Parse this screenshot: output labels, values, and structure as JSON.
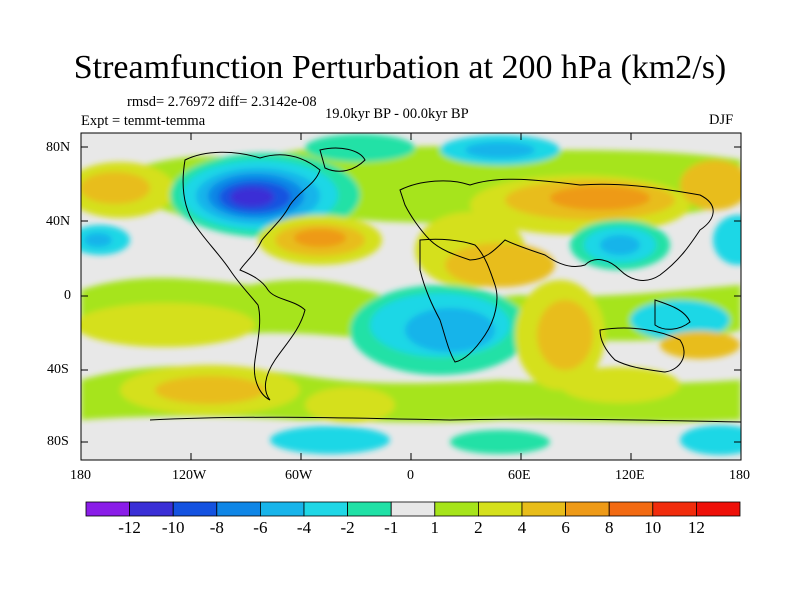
{
  "title": "Streamfunction Perturbation at 200 hPa (km2/s)",
  "stats": "rmsd= 2.76972 diff= 2.3142e-08",
  "experiment": "Expt = temmt-temma",
  "period": "19.0kyr BP - 00.0kyr BP",
  "season": "DJF",
  "lat_labels": [
    "80N",
    "40N",
    "0",
    "40S",
    "80S"
  ],
  "lon_labels": [
    "180",
    "120W",
    "60W",
    "0",
    "60E",
    "120E",
    "180"
  ],
  "colorbar": {
    "labels": [
      "-12",
      "-10",
      "-8",
      "-6",
      "-4",
      "-2",
      "-1",
      "1",
      "2",
      "4",
      "6",
      "8",
      "10",
      "12"
    ],
    "colors": [
      "#8a1de8",
      "#3a2fd6",
      "#1452e0",
      "#0f86e6",
      "#18b4ea",
      "#1fd7e6",
      "#20e1a6",
      "#e8e8e8",
      "#a6e41a",
      "#d5e01c",
      "#e8bd1a",
      "#ee9a17",
      "#f26a12",
      "#f12c0c",
      "#ee1009"
    ]
  },
  "map": {
    "background": "#e8e8e8",
    "anomalies": [
      {
        "name": "north-pacific-positive",
        "value": 6
      },
      {
        "name": "canada-negative",
        "value": -12
      },
      {
        "name": "north-atlantic-positive",
        "value": 6
      },
      {
        "name": "eurasia-positive",
        "value": 6
      },
      {
        "name": "siberia-negative",
        "value": -4
      },
      {
        "name": "south-atlantic-negative",
        "value": -6
      },
      {
        "name": "southern-africa-positive",
        "value": 6
      }
    ]
  }
}
